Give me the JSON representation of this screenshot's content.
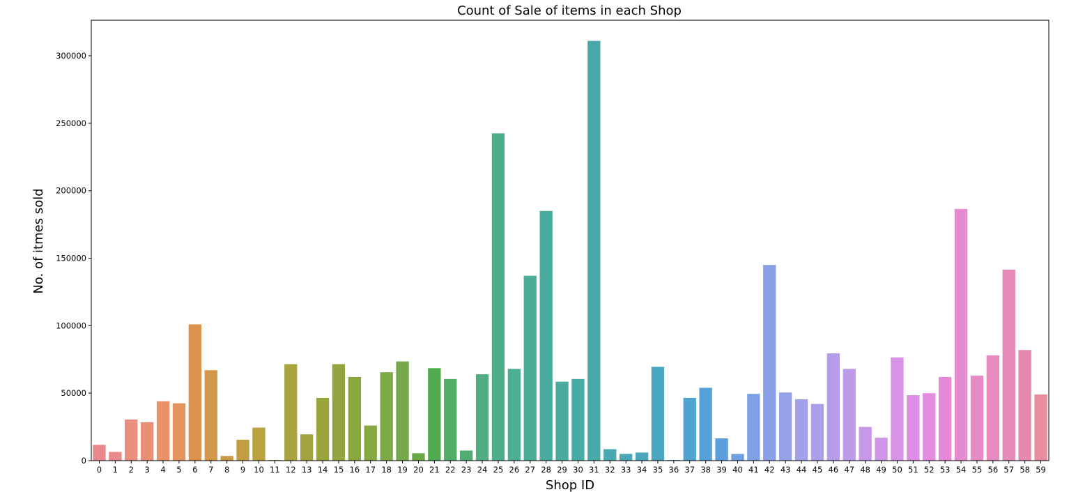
{
  "chart_data": {
    "type": "bar",
    "title": "Count of Sale of items in each Shop",
    "xlabel": "Shop ID",
    "ylabel": "No. of itmes sold",
    "ylim": [
      0,
      325000
    ],
    "yticks": [
      "0",
      "50000",
      "100000",
      "150000",
      "200000",
      "250000",
      "300000"
    ],
    "grid": false,
    "categories": [
      "0",
      "1",
      "2",
      "3",
      "4",
      "5",
      "6",
      "7",
      "8",
      "9",
      "10",
      "11",
      "12",
      "13",
      "14",
      "15",
      "16",
      "17",
      "18",
      "19",
      "20",
      "21",
      "22",
      "23",
      "24",
      "25",
      "26",
      "27",
      "28",
      "29",
      "30",
      "31",
      "32",
      "33",
      "34",
      "35",
      "36",
      "37",
      "38",
      "39",
      "40",
      "41",
      "42",
      "43",
      "44",
      "45",
      "46",
      "47",
      "48",
      "49",
      "50",
      "51",
      "52",
      "53",
      "54",
      "55",
      "56",
      "57",
      "58",
      "59"
    ],
    "values": [
      11700,
      6500,
      30500,
      28500,
      44000,
      42500,
      101000,
      67000,
      3500,
      15500,
      24500,
      500,
      71500,
      19500,
      46500,
      71500,
      62000,
      26000,
      65500,
      73500,
      5500,
      68500,
      60500,
      7500,
      64000,
      242500,
      68000,
      137000,
      185000,
      58500,
      60500,
      311000,
      8500,
      5000,
      6000,
      69500,
      500,
      46500,
      54000,
      16500,
      5000,
      49500,
      145000,
      50500,
      45500,
      42000,
      79500,
      68000,
      25000,
      17000,
      76500,
      48500,
      50000,
      62000,
      186500,
      63000,
      78000,
      141500,
      82000,
      49000
    ],
    "colors": [
      "#e8888d",
      "#e8898a",
      "#e98f7e",
      "#e98f77",
      "#e99167",
      "#e6945f",
      "#dc914c",
      "#d3964a",
      "#c99b46",
      "#c29d42",
      "#b9a340",
      "#b1a33e",
      "#a8a43e",
      "#a3a43d",
      "#9ba53e",
      "#94a53f",
      "#8da740",
      "#86a843",
      "#7fa847",
      "#76a94b",
      "#6aa944",
      "#51aa4f",
      "#52ad67",
      "#52ac74",
      "#52ae81",
      "#4dae89",
      "#4cae93",
      "#4bac98",
      "#4aac9f",
      "#49ab9f",
      "#48aaa6",
      "#47a9aa",
      "#48a9b1",
      "#49a8b5",
      "#4aa7bb",
      "#4ba6c2",
      "#4ea5c6",
      "#4fa3cf",
      "#53a1d6",
      "#5a9fdc",
      "#709fe3",
      "#7ea2e6",
      "#8aa1e8",
      "#96a2e8",
      "#a2a1e8",
      "#ac9eea",
      "#b59be8",
      "#bd9aea",
      "#c797e8",
      "#cf95e8",
      "#d892e8",
      "#df8de4",
      "#e28be0",
      "#e489d7",
      "#e68bd0",
      "#e68ac8",
      "#e68ac0",
      "#e489b8",
      "#e589ae",
      "#e98c9e"
    ]
  }
}
